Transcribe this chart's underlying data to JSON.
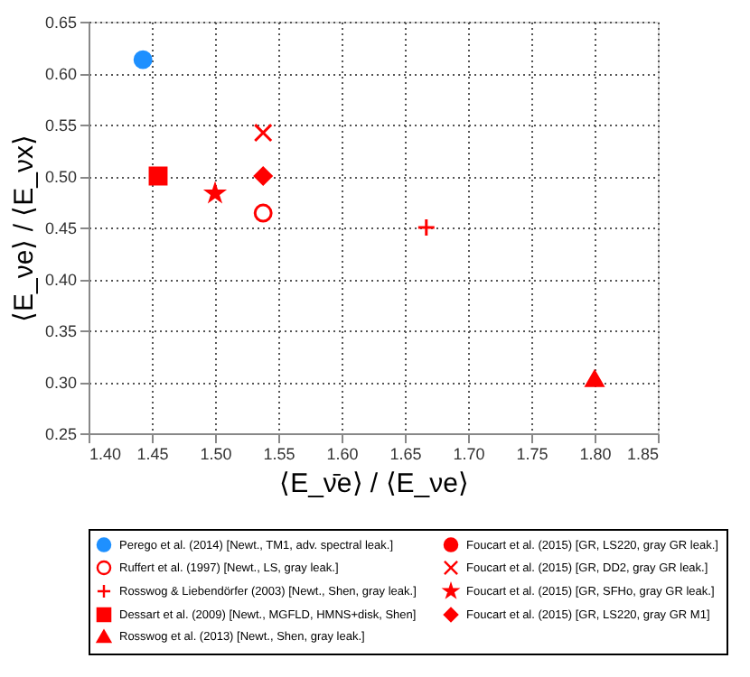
{
  "chart_data": {
    "type": "scatter",
    "xlabel": "⟨E_ν̄e⟩ / ⟨E_νe⟩",
    "ylabel": "⟨E_νe⟩ / ⟨E_νx⟩",
    "xlim": [
      1.4,
      1.85
    ],
    "xticks": [
      {
        "value": 1.4,
        "label": "1.40"
      },
      1.45,
      {
        "value": 1.5,
        "label": "1.50"
      },
      1.55,
      {
        "value": 1.6,
        "label": "1.60"
      },
      1.65,
      {
        "value": 1.7,
        "label": "1.70"
      },
      1.75,
      {
        "value": 1.8,
        "label": "1.80"
      },
      1.85
    ],
    "ylim": [
      0.25,
      0.65
    ],
    "yticks": [
      0.25,
      {
        "value": 0.3,
        "label": "0.30"
      },
      0.35,
      {
        "value": 0.4,
        "label": "0.40"
      },
      0.45,
      {
        "value": 0.5,
        "label": "0.50"
      },
      0.55,
      {
        "value": 0.6,
        "label": "0.60"
      },
      0.65
    ],
    "grid": true,
    "legend": "bottom",
    "series": [
      {
        "name": "Perego et al. (2014) [Newt., TM1, adv. spectral leak.]",
        "color": "#1e90ff",
        "marker": "circle",
        "x": [
          1.443
        ],
        "values": [
          0.613
        ]
      },
      {
        "name": "Ruffert et al. (1997) [Newt., LS, gray leak.]",
        "color": "#ff0000",
        "marker": "circle_open",
        "x": [
          1.538
        ],
        "values": [
          0.464
        ]
      },
      {
        "name": "Rosswog & Liebendörfer (2003) [Newt., Shen, gray leak.]",
        "color": "#ff0000",
        "marker": "plus",
        "x": [
          1.667
        ],
        "values": [
          0.45
        ]
      },
      {
        "name": "Dessart et al. (2009) [Newt., MGFLD, HMNS+disk, Shen]",
        "color": "#ff0000",
        "marker": "square",
        "x": [
          1.455
        ],
        "values": [
          0.5
        ]
      },
      {
        "name": "Rosswog et al. (2013) [Newt., Shen, gray leak.]",
        "color": "#ff0000",
        "marker": "triangle",
        "x": [
          1.8
        ],
        "values": [
          0.303
        ]
      },
      {
        "name": "Foucart et al. (2015) [GR, LS220, gray GR leak.]",
        "color": "#ff0000",
        "marker": "circle",
        "x": [
          null
        ],
        "values": [
          null
        ]
      },
      {
        "name": "Foucart et al. (2015) [GR, DD2, gray GR leak.]",
        "color": "#ff0000",
        "marker": "cross",
        "x": [
          1.538
        ],
        "values": [
          0.542
        ]
      },
      {
        "name": "Foucart et al. (2015) [GR, SFHo, gray GR leak.]",
        "color": "#ff0000",
        "marker": "star",
        "x": [
          1.5
        ],
        "values": [
          0.483
        ]
      },
      {
        "name": "Foucart et al. (2015) [GR, LS220, gray GR M1]",
        "color": "#ff0000",
        "marker": "diamond",
        "x": [
          1.538
        ],
        "values": [
          0.5
        ]
      }
    ]
  }
}
